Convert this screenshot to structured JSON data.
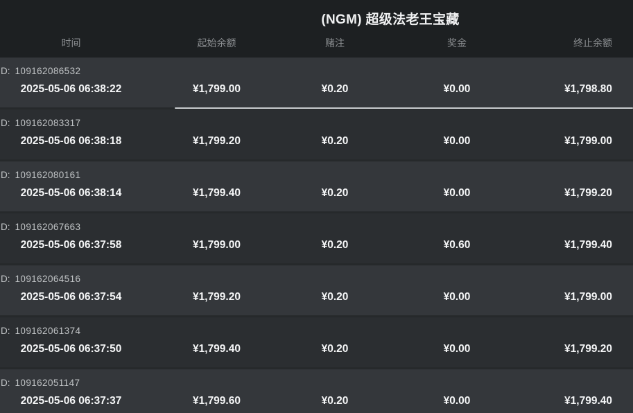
{
  "title": "(NGM) 超级法老王宝藏",
  "colors": {
    "page_bg": "#1d2022",
    "row_odd_bg": "#34373b",
    "row_even_bg": "#2b2e31",
    "row_separator": "#26292b",
    "header_text": "#8b8e91",
    "id_text": "#c2c5c7",
    "value_text": "#f5f6f7",
    "title_text": "#f0f1f2",
    "scroll_thumb": "#c8cbce"
  },
  "table": {
    "id_prefix": "D:",
    "columns": [
      "时间",
      "起始余额",
      "赌注",
      "奖金",
      "终止余额"
    ],
    "rows": [
      {
        "id": "109162086532",
        "time": "2025-05-06 06:38:22",
        "start_balance": "¥1,799.00",
        "bet": "¥0.20",
        "prize": "¥0.00",
        "end_balance": "¥1,798.80"
      },
      {
        "id": "109162083317",
        "time": "2025-05-06 06:38:18",
        "start_balance": "¥1,799.20",
        "bet": "¥0.20",
        "prize": "¥0.00",
        "end_balance": "¥1,799.00"
      },
      {
        "id": "109162080161",
        "time": "2025-05-06 06:38:14",
        "start_balance": "¥1,799.40",
        "bet": "¥0.20",
        "prize": "¥0.00",
        "end_balance": "¥1,799.20"
      },
      {
        "id": "109162067663",
        "time": "2025-05-06 06:37:58",
        "start_balance": "¥1,799.00",
        "bet": "¥0.20",
        "prize": "¥0.60",
        "end_balance": "¥1,799.40"
      },
      {
        "id": "109162064516",
        "time": "2025-05-06 06:37:54",
        "start_balance": "¥1,799.20",
        "bet": "¥0.20",
        "prize": "¥0.00",
        "end_balance": "¥1,799.00"
      },
      {
        "id": "109162061374",
        "time": "2025-05-06 06:37:50",
        "start_balance": "¥1,799.40",
        "bet": "¥0.20",
        "prize": "¥0.00",
        "end_balance": "¥1,799.20"
      },
      {
        "id": "109162051147",
        "time": "2025-05-06 06:37:37",
        "start_balance": "¥1,799.60",
        "bet": "¥0.20",
        "prize": "¥0.00",
        "end_balance": "¥1,799.40"
      }
    ]
  }
}
